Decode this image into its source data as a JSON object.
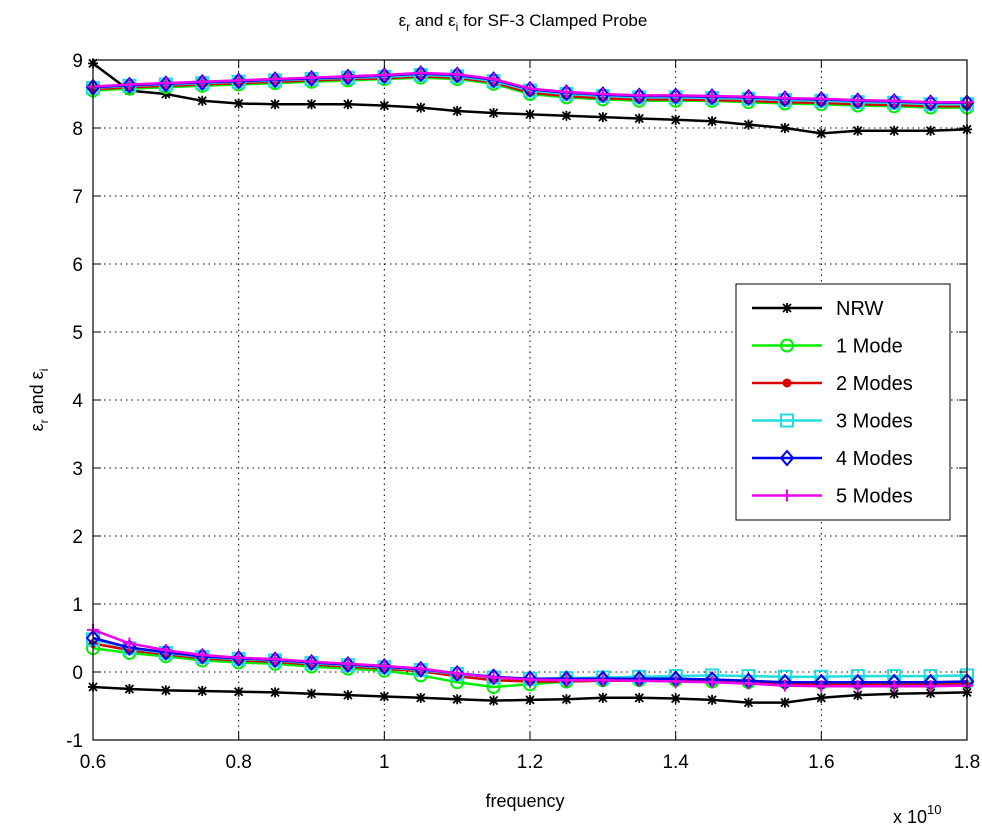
{
  "chart_data": {
    "type": "line",
    "title": {
      "symbol_a": "ε",
      "sub_a": "r",
      "middle": " and ",
      "symbol_b": "ε",
      "sub_b": "i",
      "rest": " for SF-3 Clamped Probe"
    },
    "ylabel": {
      "symbol_a": "ε",
      "sub_a": "r",
      "middle": " and ",
      "symbol_b": "ε",
      "sub_b": "i"
    },
    "xlabel": "frequency",
    "x_multiplier": {
      "base": "x 10",
      "exponent": "10"
    },
    "xlim": [
      0.6,
      1.8
    ],
    "ylim": [
      -1,
      9
    ],
    "grid": true,
    "xticks": [
      0.6,
      0.8,
      1.0,
      1.2,
      1.4,
      1.6,
      1.8
    ],
    "xtick_labels": [
      "0.6",
      "0.8",
      "1",
      "1.2",
      "1.4",
      "1.6",
      "1.8"
    ],
    "yticks": [
      -1,
      0,
      1,
      2,
      3,
      4,
      5,
      6,
      7,
      8,
      9
    ],
    "ytick_labels": [
      "-1",
      "0",
      "1",
      "2",
      "3",
      "4",
      "5",
      "6",
      "7",
      "8",
      "9"
    ],
    "legend_position": "right",
    "x": [
      0.6,
      0.65,
      0.7,
      0.75,
      0.8,
      0.85,
      0.9,
      0.95,
      1.0,
      1.05,
      1.1,
      1.15,
      1.2,
      1.25,
      1.3,
      1.35,
      1.4,
      1.45,
      1.5,
      1.55,
      1.6,
      1.65,
      1.7,
      1.75,
      1.8
    ],
    "series": [
      {
        "name": "NRW",
        "color": "#000000",
        "marker": "star",
        "real": [
          8.95,
          8.55,
          8.5,
          8.4,
          8.36,
          8.35,
          8.35,
          8.35,
          8.33,
          8.3,
          8.25,
          8.22,
          8.2,
          8.18,
          8.16,
          8.14,
          8.12,
          8.1,
          8.05,
          8.0,
          7.92,
          7.96,
          7.96,
          7.96,
          7.98
        ],
        "imag": [
          -0.22,
          -0.25,
          -0.27,
          -0.28,
          -0.29,
          -0.3,
          -0.32,
          -0.34,
          -0.36,
          -0.38,
          -0.4,
          -0.42,
          -0.41,
          -0.4,
          -0.38,
          -0.38,
          -0.39,
          -0.41,
          -0.45,
          -0.45,
          -0.38,
          -0.34,
          -0.32,
          -0.31,
          -0.3
        ]
      },
      {
        "name": "1 Mode",
        "color": "#00ee00",
        "marker": "circle",
        "real": [
          8.55,
          8.58,
          8.6,
          8.62,
          8.64,
          8.66,
          8.68,
          8.7,
          8.72,
          8.74,
          8.72,
          8.65,
          8.5,
          8.45,
          8.42,
          8.4,
          8.4,
          8.4,
          8.38,
          8.36,
          8.35,
          8.33,
          8.32,
          8.3,
          8.3
        ],
        "imag": [
          0.35,
          0.28,
          0.23,
          0.17,
          0.14,
          0.12,
          0.08,
          0.05,
          0.02,
          -0.05,
          -0.15,
          -0.22,
          -0.18,
          -0.14,
          -0.12,
          -0.12,
          -0.12,
          -0.14,
          -0.15,
          -0.15,
          -0.16,
          -0.16,
          -0.16,
          -0.16,
          -0.15
        ]
      },
      {
        "name": "2 Modes",
        "color": "#dd0000",
        "marker": "dot",
        "real": [
          8.57,
          8.6,
          8.62,
          8.64,
          8.66,
          8.68,
          8.7,
          8.72,
          8.73,
          8.76,
          8.74,
          8.67,
          8.52,
          8.47,
          8.44,
          8.42,
          8.42,
          8.41,
          8.4,
          8.38,
          8.37,
          8.35,
          8.34,
          8.32,
          8.32
        ],
        "imag": [
          0.42,
          0.32,
          0.26,
          0.2,
          0.17,
          0.15,
          0.11,
          0.08,
          0.05,
          0.01,
          -0.06,
          -0.12,
          -0.14,
          -0.14,
          -0.13,
          -0.13,
          -0.13,
          -0.14,
          -0.16,
          -0.18,
          -0.19,
          -0.19,
          -0.19,
          -0.19,
          -0.18
        ]
      },
      {
        "name": "3 Modes",
        "color": "#22dddd",
        "marker": "square",
        "real": [
          8.59,
          8.62,
          8.64,
          8.66,
          8.68,
          8.7,
          8.72,
          8.74,
          8.75,
          8.78,
          8.76,
          8.69,
          8.55,
          8.5,
          8.47,
          8.45,
          8.45,
          8.44,
          8.43,
          8.41,
          8.4,
          8.38,
          8.37,
          8.35,
          8.35
        ],
        "imag": [
          0.48,
          0.35,
          0.28,
          0.22,
          0.19,
          0.17,
          0.13,
          0.1,
          0.07,
          0.03,
          -0.03,
          -0.08,
          -0.1,
          -0.09,
          -0.08,
          -0.07,
          -0.06,
          -0.05,
          -0.06,
          -0.07,
          -0.07,
          -0.06,
          -0.06,
          -0.06,
          -0.05
        ]
      },
      {
        "name": "4 Modes",
        "color": "#0000ee",
        "marker": "diamond",
        "real": [
          8.6,
          8.63,
          8.65,
          8.67,
          8.69,
          8.71,
          8.73,
          8.75,
          8.77,
          8.8,
          8.78,
          8.71,
          8.57,
          8.52,
          8.49,
          8.47,
          8.47,
          8.46,
          8.45,
          8.43,
          8.42,
          8.4,
          8.39,
          8.37,
          8.37
        ],
        "imag": [
          0.5,
          0.36,
          0.29,
          0.23,
          0.2,
          0.18,
          0.14,
          0.11,
          0.08,
          0.04,
          -0.02,
          -0.07,
          -0.1,
          -0.1,
          -0.1,
          -0.1,
          -0.1,
          -0.11,
          -0.13,
          -0.15,
          -0.15,
          -0.15,
          -0.15,
          -0.15,
          -0.14
        ]
      },
      {
        "name": "5 Modes",
        "color": "#ee00ee",
        "marker": "plus",
        "real": [
          8.61,
          8.64,
          8.66,
          8.68,
          8.7,
          8.72,
          8.74,
          8.76,
          8.78,
          8.81,
          8.79,
          8.72,
          8.58,
          8.53,
          8.5,
          8.48,
          8.48,
          8.47,
          8.46,
          8.44,
          8.43,
          8.41,
          8.4,
          8.38,
          8.38
        ],
        "imag": [
          0.62,
          0.42,
          0.32,
          0.25,
          0.21,
          0.19,
          0.15,
          0.12,
          0.09,
          0.05,
          -0.02,
          -0.08,
          -0.11,
          -0.12,
          -0.12,
          -0.13,
          -0.14,
          -0.15,
          -0.17,
          -0.2,
          -0.21,
          -0.21,
          -0.21,
          -0.21,
          -0.2
        ]
      }
    ]
  }
}
